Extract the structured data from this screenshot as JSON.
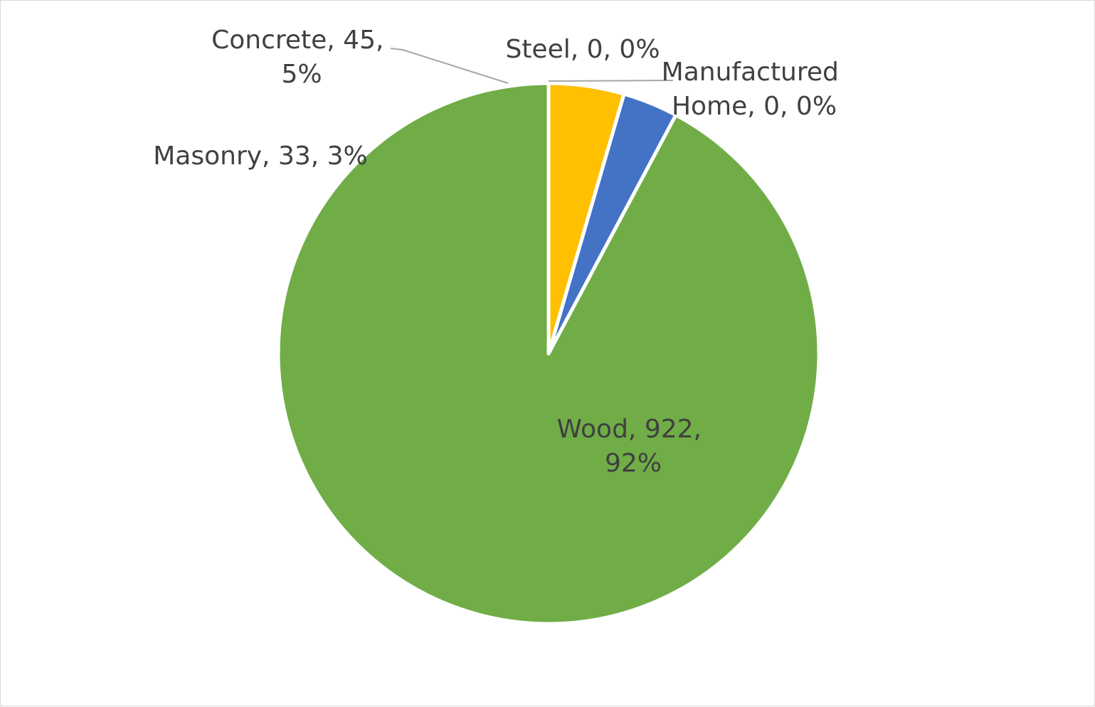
{
  "chart_data": {
    "type": "pie",
    "title": "",
    "categories": [
      "Wood",
      "Masonry",
      "Concrete",
      "Steel",
      "Manufactured Home"
    ],
    "values": [
      922,
      33,
      45,
      0,
      0
    ],
    "percent_labels": [
      "92%",
      "3%",
      "5%",
      "0%",
      "0%"
    ],
    "colors": [
      "#70ad47",
      "#4472c4",
      "#ffc000",
      "#a5a5a5",
      "#5b9bd5"
    ],
    "start_angle_deg": 0,
    "direction": "counterclockwise",
    "legend": "none",
    "data_labels": [
      {
        "lines": [
          "Wood, 922,",
          "92%"
        ]
      },
      {
        "lines": [
          "Masonry, 33, 3%"
        ]
      },
      {
        "lines": [
          "Concrete, 45,",
          "5%"
        ]
      },
      {
        "lines": [
          "Steel, 0, 0%"
        ]
      },
      {
        "lines": [
          "Manufactured",
          "Home, 0, 0%"
        ]
      }
    ]
  }
}
